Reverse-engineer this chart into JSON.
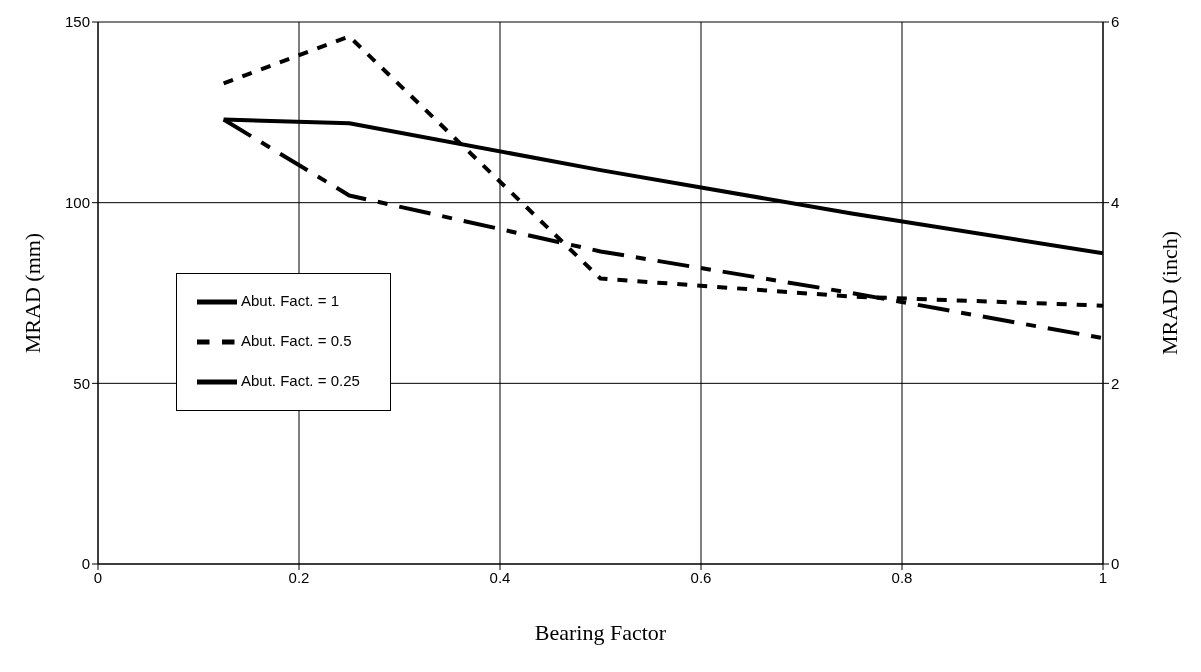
{
  "chart_data": {
    "type": "line",
    "xlabel": "Bearing Factor",
    "ylabel": "MRAD (mm)",
    "y2label": "MRAD (inch)",
    "x": [
      0.125,
      0.25,
      0.5,
      0.75,
      1
    ],
    "series": [
      {
        "name": "Abut. Fact. = 1",
        "color": "#000000",
        "line_style": "solid",
        "values": [
          123,
          122,
          109,
          97,
          86
        ]
      },
      {
        "name": "Abut. Fact. = 0.5",
        "color": "#000000",
        "line_style": "dotted",
        "values": [
          133,
          146,
          79,
          74,
          71.5
        ]
      },
      {
        "name": "Abut. Fact. = 0.25",
        "color": "#000000",
        "line_style": "dashed",
        "values": [
          123,
          102,
          86.5,
          75,
          62.5
        ]
      }
    ],
    "xlim": [
      0,
      1
    ],
    "xticks": [
      0,
      0.2,
      0.4,
      0.6,
      0.8,
      1
    ],
    "ylim": [
      0,
      150
    ],
    "yticks": [
      0,
      50,
      100,
      150
    ],
    "y2lim": [
      0,
      6
    ],
    "y2ticks": [
      0,
      2,
      4,
      6
    ],
    "grid": true,
    "legend": "left",
    "marker": "none"
  }
}
